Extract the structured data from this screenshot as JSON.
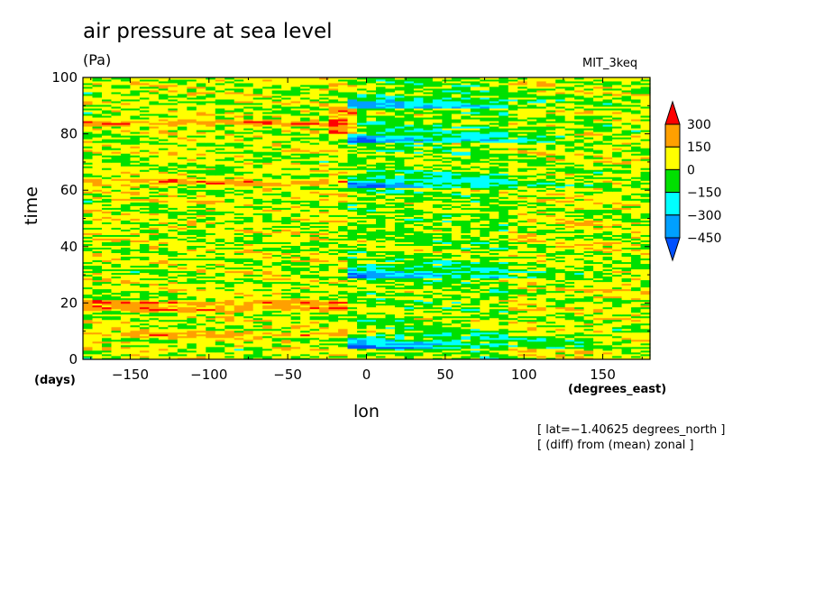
{
  "header": {
    "title": "air pressure at sea level",
    "units": "(Pa)",
    "dataset": "MIT_3keq"
  },
  "notes": {
    "latitude": "[ lat=−1.40625 degrees_north ]",
    "operation": "[ (diff) from (mean) zonal ]"
  },
  "chart_data": {
    "type": "heatmap",
    "title": "air pressure at sea level",
    "units": "(Pa)",
    "xlabel": "lon",
    "ylabel": "time",
    "x_units": "(degrees_east)",
    "y_units": "(days)",
    "xlim": [
      -180,
      180
    ],
    "ylim": [
      0,
      100
    ],
    "x_ticks": [
      -150,
      -100,
      -50,
      0,
      50,
      100,
      150
    ],
    "x_tick_labels": [
      "−150",
      "−100",
      "−50",
      "0",
      "50",
      "100",
      "150"
    ],
    "y_ticks": [
      0,
      20,
      40,
      60,
      80,
      100
    ],
    "y_tick_labels": [
      "0",
      "20",
      "40",
      "60",
      "80",
      "100"
    ],
    "colorbar": {
      "levels": [
        300,
        150,
        0,
        -150,
        -300,
        -450
      ],
      "labels": [
        "300",
        "150",
        "0",
        "−150",
        "−300",
        "−450"
      ],
      "colors": [
        "#ff0000",
        "#ffa000",
        "#ffff00",
        "#00e000",
        "#00ffff",
        "#00a0ff",
        "#0050ff"
      ]
    },
    "features": {
      "low_pressure_events_days": [
        5,
        30,
        62,
        78,
        90
      ],
      "low_pressure_lon_range": [
        -10,
        120
      ],
      "high_pressure_bands_days": [
        9,
        18,
        20,
        63,
        84
      ],
      "high_pressure_lon_range": [
        -150,
        -10
      ]
    }
  }
}
